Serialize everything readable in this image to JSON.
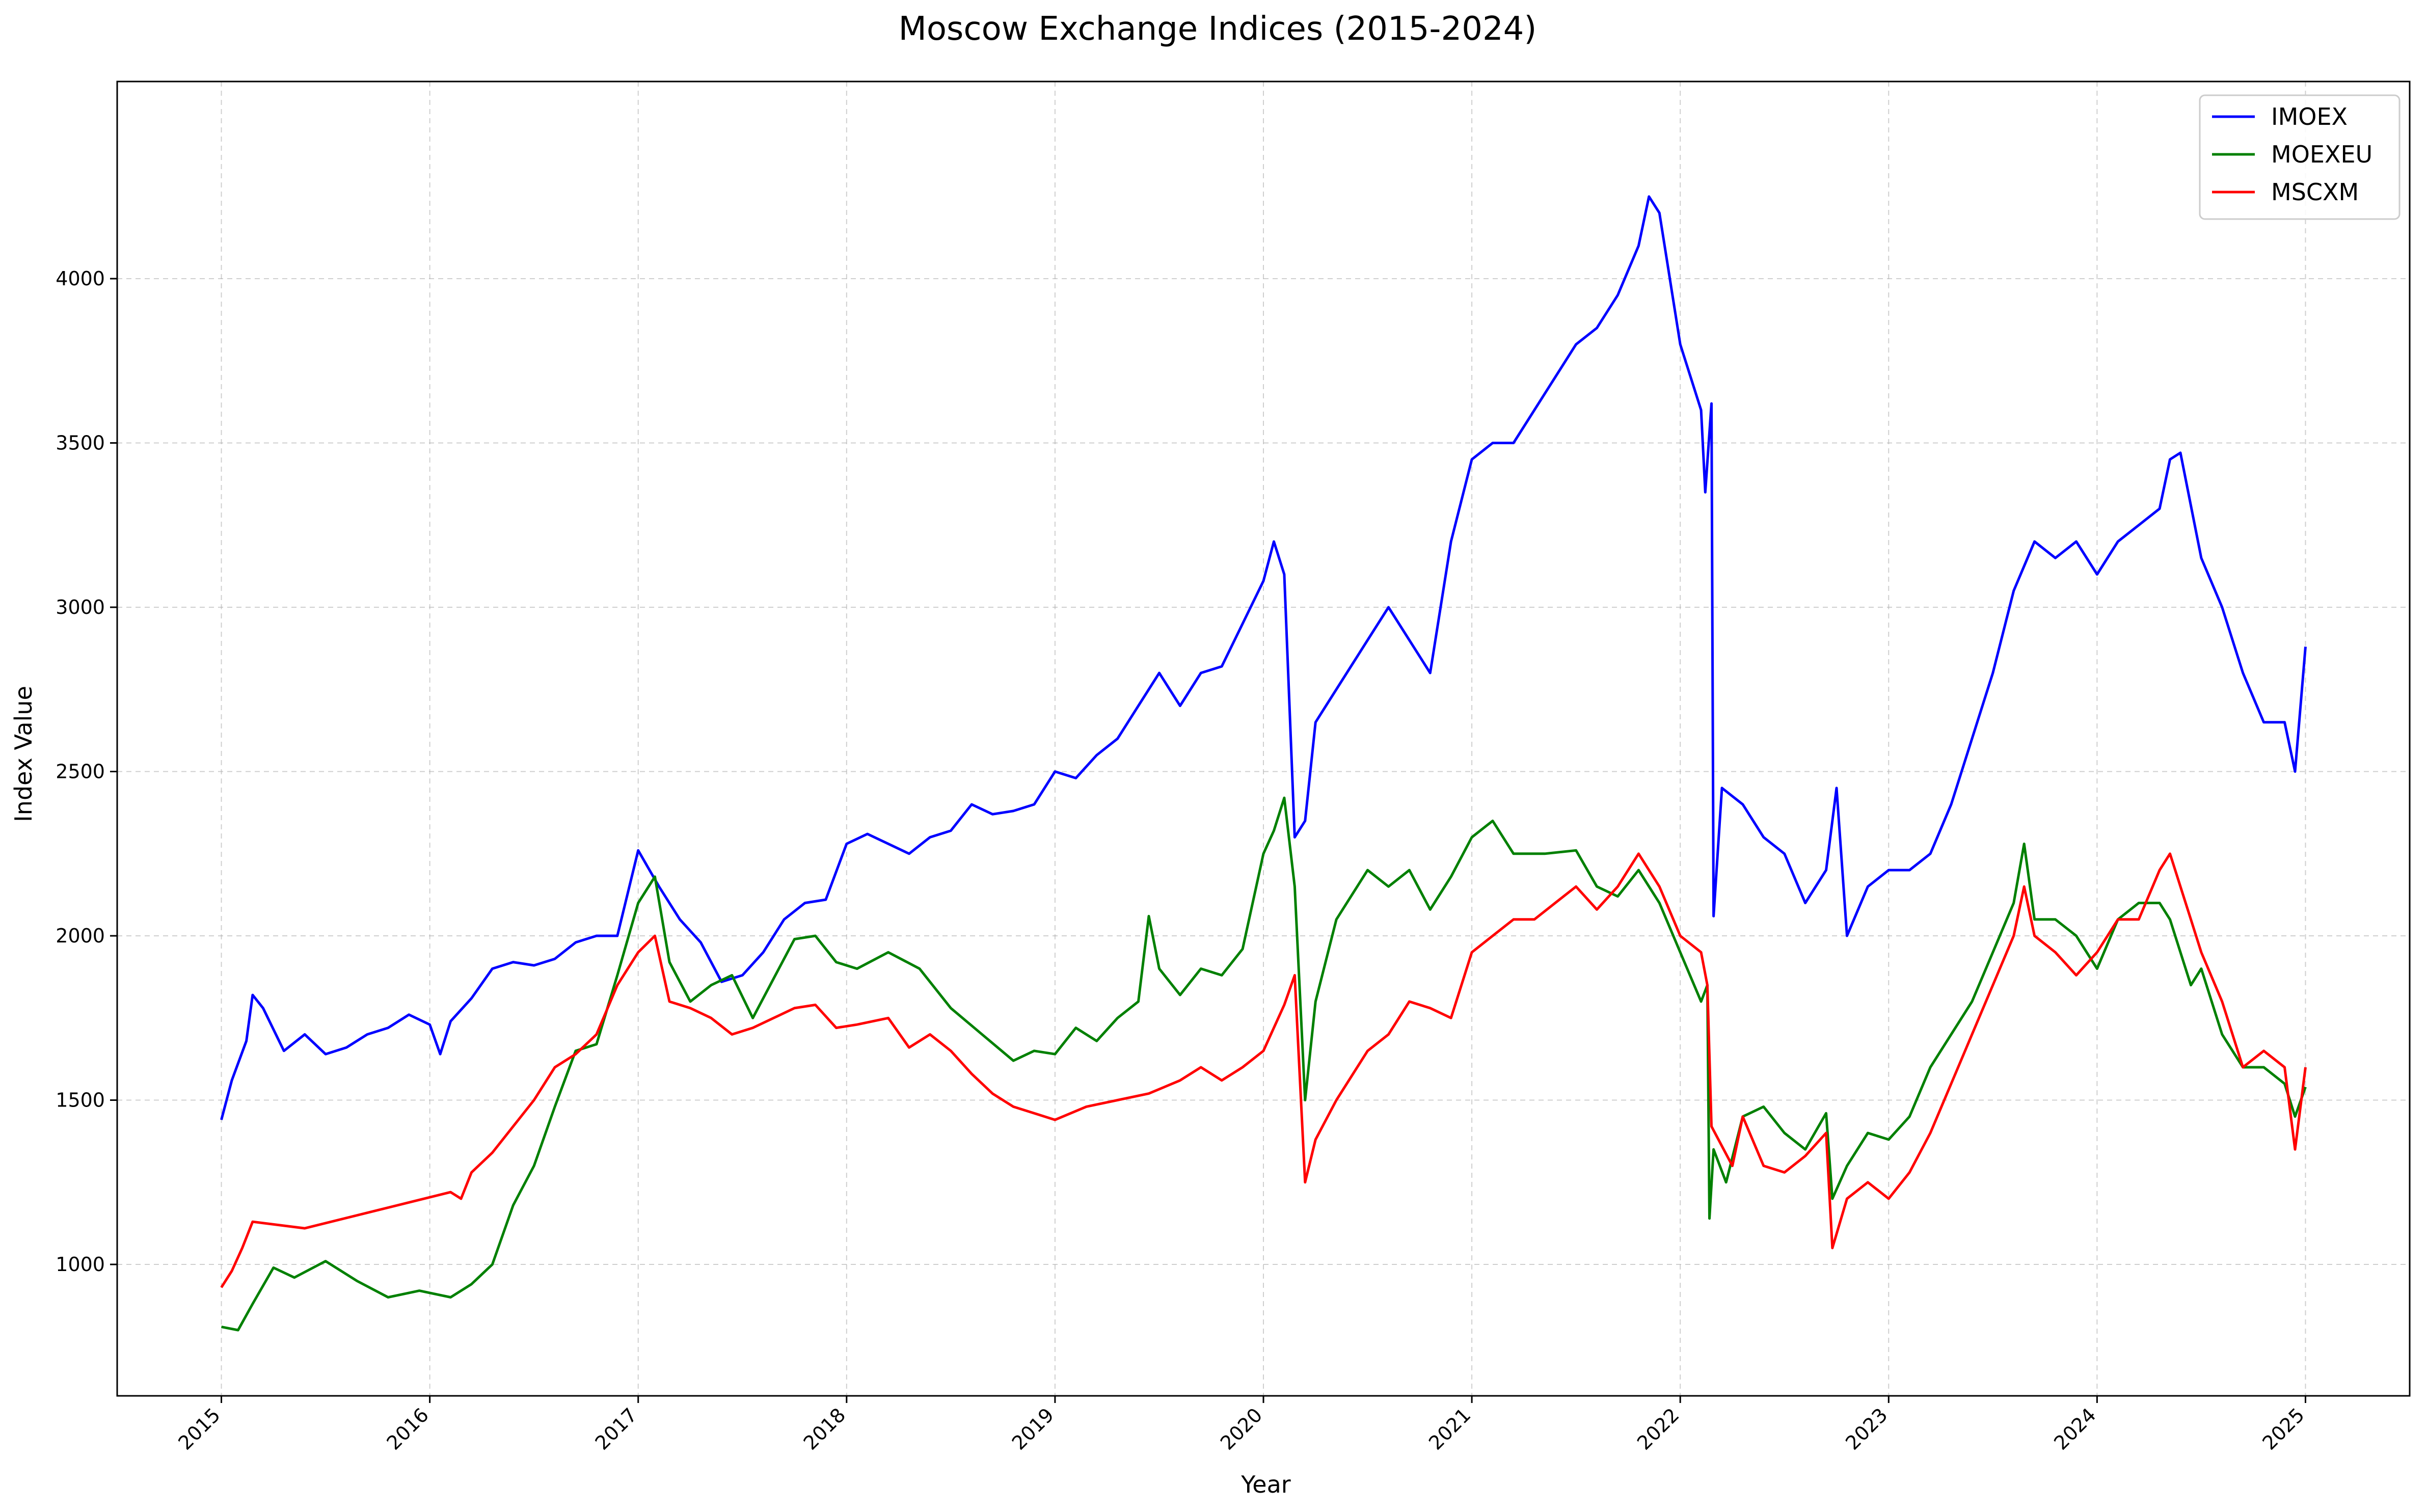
{
  "chart_data": {
    "type": "line",
    "title": "Moscow Exchange Indices (2015-2024)",
    "xlabel": "Year",
    "ylabel": "Index Value",
    "xlim": [
      2014.5,
      2025.5
    ],
    "ylim": [
      600,
      4600
    ],
    "x_ticks": [
      2015,
      2016,
      2017,
      2018,
      2019,
      2020,
      2021,
      2022,
      2023,
      2024,
      2025
    ],
    "x_tick_labels": [
      "2015",
      "2016",
      "2017",
      "2018",
      "2019",
      "2020",
      "2021",
      "2022",
      "2023",
      "2024",
      "2025"
    ],
    "y_ticks": [
      1000,
      1500,
      2000,
      2500,
      3000,
      3500,
      4000
    ],
    "y_tick_labels": [
      "1000",
      "1500",
      "2000",
      "2500",
      "3000",
      "3500",
      "4000"
    ],
    "grid": true,
    "legend_position": "top-right",
    "series": [
      {
        "name": "IMOEX",
        "color": "#0000ff",
        "x": [
          2015.0,
          2015.05,
          2015.12,
          2015.15,
          2015.2,
          2015.3,
          2015.4,
          2015.5,
          2015.6,
          2015.7,
          2015.8,
          2015.9,
          2016.0,
          2016.05,
          2016.1,
          2016.2,
          2016.3,
          2016.4,
          2016.5,
          2016.6,
          2016.7,
          2016.8,
          2016.9,
          2017.0,
          2017.1,
          2017.2,
          2017.3,
          2017.4,
          2017.5,
          2017.6,
          2017.7,
          2017.8,
          2017.9,
          2018.0,
          2018.1,
          2018.2,
          2018.3,
          2018.4,
          2018.5,
          2018.6,
          2018.7,
          2018.8,
          2018.9,
          2019.0,
          2019.1,
          2019.2,
          2019.3,
          2019.4,
          2019.5,
          2019.6,
          2019.7,
          2019.8,
          2019.9,
          2020.0,
          2020.05,
          2020.1,
          2020.15,
          2020.2,
          2020.25,
          2020.3,
          2020.4,
          2020.5,
          2020.6,
          2020.7,
          2020.8,
          2020.9,
          2021.0,
          2021.1,
          2021.2,
          2021.3,
          2021.4,
          2021.5,
          2021.6,
          2021.7,
          2021.8,
          2021.85,
          2021.9,
          2022.0,
          2022.1,
          2022.12,
          2022.15,
          2022.16,
          2022.2,
          2022.3,
          2022.4,
          2022.5,
          2022.6,
          2022.7,
          2022.75,
          2022.8,
          2022.9,
          2023.0,
          2023.1,
          2023.2,
          2023.3,
          2023.4,
          2023.5,
          2023.6,
          2023.7,
          2023.8,
          2023.9,
          2024.0,
          2024.1,
          2024.2,
          2024.3,
          2024.35,
          2024.4,
          2024.5,
          2024.6,
          2024.7,
          2024.8,
          2024.9,
          2024.95,
          2025.0
        ],
        "y": [
          1440,
          1560,
          1680,
          1820,
          1780,
          1650,
          1700,
          1640,
          1660,
          1700,
          1720,
          1760,
          1730,
          1640,
          1740,
          1810,
          1900,
          1920,
          1910,
          1930,
          1980,
          2000,
          2000,
          2260,
          2150,
          2050,
          1980,
          1860,
          1880,
          1950,
          2050,
          2100,
          2110,
          2280,
          2310,
          2280,
          2250,
          2300,
          2320,
          2400,
          2370,
          2380,
          2400,
          2500,
          2480,
          2550,
          2600,
          2700,
          2800,
          2700,
          2800,
          2820,
          2950,
          3080,
          3200,
          3100,
          2300,
          2350,
          2650,
          2700,
          2800,
          2900,
          3000,
          2900,
          2800,
          3200,
          3450,
          3500,
          3500,
          3600,
          3700,
          3800,
          3850,
          3950,
          4100,
          4250,
          4200,
          3800,
          3600,
          3350,
          3620,
          2060,
          2450,
          2400,
          2300,
          2250,
          2100,
          2200,
          2450,
          2000,
          2150,
          2200,
          2200,
          2250,
          2400,
          2600,
          2800,
          3050,
          3200,
          3150,
          3200,
          3100,
          3200,
          3250,
          3300,
          3450,
          3470,
          3150,
          3000,
          2800,
          2650,
          2650,
          2500,
          2880
        ]
      },
      {
        "name": "MOEXEU",
        "color": "#008000",
        "x": [
          2015.0,
          2015.08,
          2015.15,
          2015.25,
          2015.35,
          2015.5,
          2015.65,
          2015.8,
          2015.95,
          2016.1,
          2016.2,
          2016.3,
          2016.4,
          2016.5,
          2016.6,
          2016.7,
          2016.8,
          2016.9,
          2017.0,
          2017.08,
          2017.15,
          2017.25,
          2017.35,
          2017.45,
          2017.55,
          2017.65,
          2017.75,
          2017.85,
          2017.95,
          2018.05,
          2018.2,
          2018.35,
          2018.5,
          2018.65,
          2018.8,
          2018.9,
          2019.0,
          2019.1,
          2019.2,
          2019.3,
          2019.4,
          2019.45,
          2019.5,
          2019.6,
          2019.7,
          2019.8,
          2019.9,
          2020.0,
          2020.05,
          2020.1,
          2020.15,
          2020.2,
          2020.25,
          2020.35,
          2020.5,
          2020.6,
          2020.7,
          2020.8,
          2020.9,
          2021.0,
          2021.1,
          2021.2,
          2021.35,
          2021.5,
          2021.6,
          2021.7,
          2021.8,
          2021.9,
          2022.0,
          2022.1,
          2022.13,
          2022.14,
          2022.16,
          2022.22,
          2022.3,
          2022.4,
          2022.5,
          2022.6,
          2022.7,
          2022.73,
          2022.8,
          2022.9,
          2023.0,
          2023.1,
          2023.2,
          2023.3,
          2023.4,
          2023.5,
          2023.6,
          2023.65,
          2023.7,
          2023.8,
          2023.9,
          2024.0,
          2024.1,
          2024.2,
          2024.3,
          2024.35,
          2024.45,
          2024.5,
          2024.6,
          2024.7,
          2024.8,
          2024.9,
          2024.95,
          2025.0
        ],
        "y": [
          810,
          800,
          880,
          990,
          960,
          1010,
          950,
          900,
          920,
          900,
          940,
          1000,
          1180,
          1300,
          1480,
          1650,
          1670,
          1880,
          2100,
          2180,
          1920,
          1800,
          1850,
          1880,
          1750,
          1870,
          1990,
          2000,
          1920,
          1900,
          1950,
          1900,
          1780,
          1700,
          1620,
          1650,
          1640,
          1720,
          1680,
          1750,
          1800,
          2060,
          1900,
          1820,
          1900,
          1880,
          1960,
          2250,
          2320,
          2420,
          2150,
          1500,
          1800,
          2050,
          2200,
          2150,
          2200,
          2080,
          2180,
          2300,
          2350,
          2250,
          2250,
          2260,
          2150,
          2120,
          2200,
          2100,
          1950,
          1800,
          1850,
          1140,
          1350,
          1250,
          1450,
          1480,
          1400,
          1350,
          1460,
          1200,
          1300,
          1400,
          1380,
          1450,
          1600,
          1700,
          1800,
          1950,
          2100,
          2280,
          2050,
          2050,
          2000,
          1900,
          2050,
          2100,
          2100,
          2050,
          1850,
          1900,
          1700,
          1600,
          1600,
          1550,
          1450,
          1540
        ]
      },
      {
        "name": "MSCXM",
        "color": "#ff0000",
        "x": [
          2015.0,
          2015.05,
          2015.1,
          2015.15,
          2015.4,
          2016.1,
          2016.15,
          2016.2,
          2016.3,
          2016.4,
          2016.5,
          2016.6,
          2016.7,
          2016.8,
          2016.9,
          2017.0,
          2017.08,
          2017.15,
          2017.25,
          2017.35,
          2017.45,
          2017.55,
          2017.65,
          2017.75,
          2017.85,
          2017.95,
          2018.05,
          2018.2,
          2018.3,
          2018.4,
          2018.5,
          2018.6,
          2018.7,
          2018.8,
          2018.9,
          2019.0,
          2019.15,
          2019.3,
          2019.45,
          2019.6,
          2019.7,
          2019.8,
          2019.9,
          2020.0,
          2020.1,
          2020.15,
          2020.2,
          2020.25,
          2020.35,
          2020.5,
          2020.6,
          2020.7,
          2020.8,
          2020.9,
          2021.0,
          2021.1,
          2021.2,
          2021.3,
          2021.4,
          2021.5,
          2021.6,
          2021.7,
          2021.8,
          2021.9,
          2022.0,
          2022.1,
          2022.13,
          2022.15,
          2022.25,
          2022.3,
          2022.4,
          2022.5,
          2022.6,
          2022.7,
          2022.73,
          2022.8,
          2022.9,
          2023.0,
          2023.1,
          2023.2,
          2023.3,
          2023.4,
          2023.5,
          2023.6,
          2023.65,
          2023.7,
          2023.8,
          2023.9,
          2024.0,
          2024.1,
          2024.2,
          2024.3,
          2024.35,
          2024.45,
          2024.5,
          2024.6,
          2024.7,
          2024.8,
          2024.9,
          2024.95,
          2025.0
        ],
        "y": [
          930,
          980,
          1050,
          1130,
          1110,
          1220,
          1200,
          1280,
          1340,
          1420,
          1500,
          1600,
          1640,
          1700,
          1850,
          1950,
          2000,
          1800,
          1780,
          1750,
          1700,
          1720,
          1750,
          1780,
          1790,
          1720,
          1730,
          1750,
          1660,
          1700,
          1650,
          1580,
          1520,
          1480,
          1460,
          1440,
          1480,
          1500,
          1520,
          1560,
          1600,
          1560,
          1600,
          1650,
          1790,
          1880,
          1250,
          1380,
          1500,
          1650,
          1700,
          1800,
          1780,
          1750,
          1950,
          2000,
          2050,
          2050,
          2100,
          2150,
          2080,
          2150,
          2250,
          2150,
          2000,
          1950,
          1850,
          1420,
          1300,
          1450,
          1300,
          1280,
          1330,
          1400,
          1050,
          1200,
          1250,
          1200,
          1280,
          1400,
          1550,
          1700,
          1850,
          2000,
          2150,
          2000,
          1950,
          1880,
          1950,
          2050,
          2050,
          2200,
          2250,
          2050,
          1950,
          1800,
          1600,
          1650,
          1600,
          1350,
          1600
        ]
      }
    ]
  }
}
